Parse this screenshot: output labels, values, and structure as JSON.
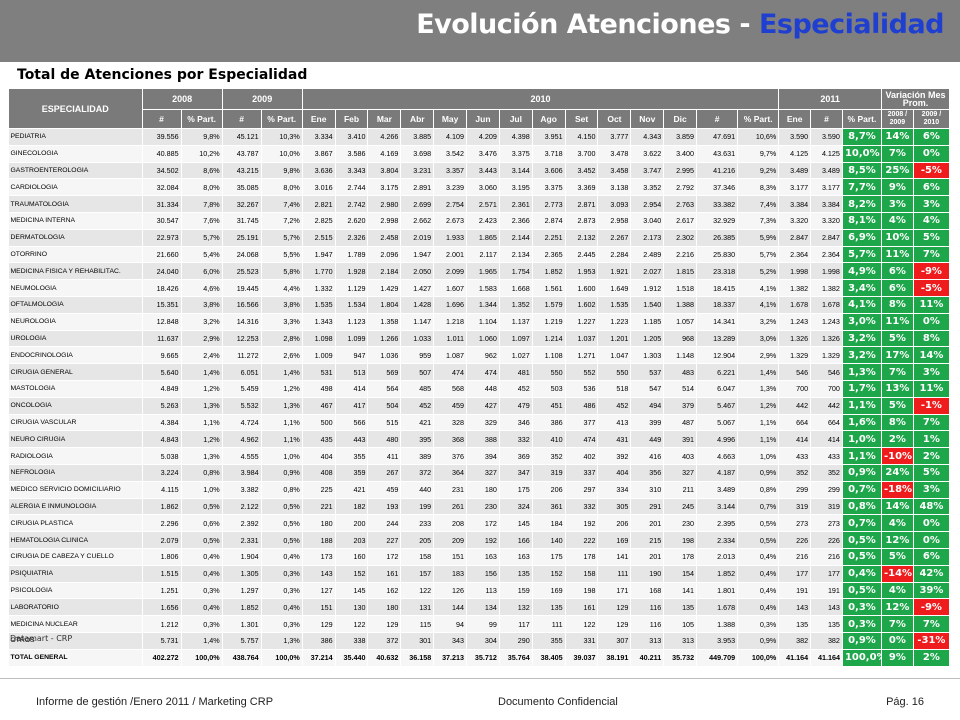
{
  "slide": {
    "title_main": "Evolución Atenciones - ",
    "title_highlight": "Especialidad",
    "subtitle": "Total de Atenciones por Especialidad",
    "source_note": "Datamart - CRP",
    "footer_left": "Informe de gestión /Enero 2011 / Marketing CRP",
    "footer_center": "Documento Confidencial",
    "footer_right": "Pág. 16",
    "colors": {
      "header_bg": "#7f7f7f",
      "highlight": "#1f3fd0",
      "table_header": "#7a7a7a",
      "positive": "#1ea64a",
      "negative": "#ee1c1c"
    }
  },
  "table": {
    "header_top": {
      "especialidad": "ESPECIALIDAD",
      "y2008": "2008",
      "y2009": "2009",
      "y2010": "2010",
      "y2011": "2011",
      "variacion": "Variación Mes Prom."
    },
    "sub_headers": [
      "#",
      "% Part.",
      "#",
      "% Part.",
      "Ene",
      "Feb",
      "Mar",
      "Abr",
      "May",
      "Jun",
      "Jul",
      "Ago",
      "Set",
      "Oct",
      "Nov",
      "Dic",
      "#",
      "% Part.",
      "Ene",
      "#",
      "% Part.",
      "2008 / 2009",
      "2009 / 2010"
    ],
    "rows": [
      [
        "PEDIATRIA",
        "39.556",
        "9,8%",
        "45.121",
        "10,3%",
        "3.334",
        "3.410",
        "4.266",
        "3.885",
        "4.109",
        "4.209",
        "4.398",
        "3.951",
        "4.150",
        "3.777",
        "4.343",
        "3.859",
        "47.691",
        "10,6%",
        "3.590",
        "3.590",
        "8,7%",
        "14%",
        "6%"
      ],
      [
        "GINECOLOGIA",
        "40.885",
        "10,2%",
        "43.787",
        "10,0%",
        "3.867",
        "3.586",
        "4.169",
        "3.698",
        "3.542",
        "3.476",
        "3.375",
        "3.718",
        "3.700",
        "3.478",
        "3.622",
        "3.400",
        "43.631",
        "9,7%",
        "4.125",
        "4.125",
        "10,0%",
        "7%",
        "0%"
      ],
      [
        "GASTROENTEROLOGIA",
        "34.502",
        "8,6%",
        "43.215",
        "9,8%",
        "3.636",
        "3.343",
        "3.804",
        "3.231",
        "3.357",
        "3.443",
        "3.144",
        "3.606",
        "3.452",
        "3.458",
        "3.747",
        "2.995",
        "41.216",
        "9,2%",
        "3.489",
        "3.489",
        "8,5%",
        "25%",
        "-5%"
      ],
      [
        "CARDIOLOGIA",
        "32.084",
        "8,0%",
        "35.085",
        "8,0%",
        "3.016",
        "2.744",
        "3.175",
        "2.891",
        "3.239",
        "3.060",
        "3.195",
        "3.375",
        "3.369",
        "3.138",
        "3.352",
        "2.792",
        "37.346",
        "8,3%",
        "3.177",
        "3.177",
        "7,7%",
        "9%",
        "6%"
      ],
      [
        "TRAUMATOLOGIA",
        "31.334",
        "7,8%",
        "32.267",
        "7,4%",
        "2.821",
        "2.742",
        "2.980",
        "2.699",
        "2.754",
        "2.571",
        "2.361",
        "2.773",
        "2.871",
        "3.093",
        "2.954",
        "2.763",
        "33.382",
        "7,4%",
        "3.384",
        "3.384",
        "8,2%",
        "3%",
        "3%"
      ],
      [
        "MEDICINA INTERNA",
        "30.547",
        "7,6%",
        "31.745",
        "7,2%",
        "2.825",
        "2.620",
        "2.998",
        "2.662",
        "2.673",
        "2.423",
        "2.366",
        "2.874",
        "2.873",
        "2.958",
        "3.040",
        "2.617",
        "32.929",
        "7,3%",
        "3.320",
        "3.320",
        "8,1%",
        "4%",
        "4%"
      ],
      [
        "DERMATOLOGIA",
        "22.973",
        "5,7%",
        "25.191",
        "5,7%",
        "2.515",
        "2.326",
        "2.458",
        "2.019",
        "1.933",
        "1.865",
        "2.144",
        "2.251",
        "2.132",
        "2.267",
        "2.173",
        "2.302",
        "26.385",
        "5,9%",
        "2.847",
        "2.847",
        "6,9%",
        "10%",
        "5%"
      ],
      [
        "OTORRINO",
        "21.660",
        "5,4%",
        "24.068",
        "5,5%",
        "1.947",
        "1.789",
        "2.096",
        "1.947",
        "2.001",
        "2.117",
        "2.134",
        "2.365",
        "2.445",
        "2.284",
        "2.489",
        "2.216",
        "25.830",
        "5,7%",
        "2.364",
        "2.364",
        "5,7%",
        "11%",
        "7%"
      ],
      [
        "MEDICINA FISICA Y REHABILITAC.",
        "24.040",
        "6,0%",
        "25.523",
        "5,8%",
        "1.770",
        "1.928",
        "2.184",
        "2.050",
        "2.099",
        "1.965",
        "1.754",
        "1.852",
        "1.953",
        "1.921",
        "2.027",
        "1.815",
        "23.318",
        "5,2%",
        "1.998",
        "1.998",
        "4,9%",
        "6%",
        "-9%"
      ],
      [
        "NEUMOLOGIA",
        "18.426",
        "4,6%",
        "19.445",
        "4,4%",
        "1.332",
        "1.129",
        "1.429",
        "1.427",
        "1.607",
        "1.583",
        "1.668",
        "1.561",
        "1.600",
        "1.649",
        "1.912",
        "1.518",
        "18.415",
        "4,1%",
        "1.382",
        "1.382",
        "3,4%",
        "6%",
        "-5%"
      ],
      [
        "OFTALMOLOGIA",
        "15.351",
        "3,8%",
        "16.566",
        "3,8%",
        "1.535",
        "1.534",
        "1.804",
        "1.428",
        "1.696",
        "1.344",
        "1.352",
        "1.579",
        "1.602",
        "1.535",
        "1.540",
        "1.388",
        "18.337",
        "4,1%",
        "1.678",
        "1.678",
        "4,1%",
        "8%",
        "11%"
      ],
      [
        "NEUROLOGIA",
        "12.848",
        "3,2%",
        "14.316",
        "3,3%",
        "1.343",
        "1.123",
        "1.358",
        "1.147",
        "1.218",
        "1.104",
        "1.137",
        "1.219",
        "1.227",
        "1.223",
        "1.185",
        "1.057",
        "14.341",
        "3,2%",
        "1.243",
        "1.243",
        "3,0%",
        "11%",
        "0%"
      ],
      [
        "UROLOGIA",
        "11.637",
        "2,9%",
        "12.253",
        "2,8%",
        "1.098",
        "1.099",
        "1.266",
        "1.033",
        "1.011",
        "1.060",
        "1.097",
        "1.214",
        "1.037",
        "1.201",
        "1.205",
        "968",
        "13.289",
        "3,0%",
        "1.326",
        "1.326",
        "3,2%",
        "5%",
        "8%"
      ],
      [
        "ENDOCRINOLOGIA",
        "9.665",
        "2,4%",
        "11.272",
        "2,6%",
        "1.009",
        "947",
        "1.036",
        "959",
        "1.087",
        "962",
        "1.027",
        "1.108",
        "1.271",
        "1.047",
        "1.303",
        "1.148",
        "12.904",
        "2,9%",
        "1.329",
        "1.329",
        "3,2%",
        "17%",
        "14%"
      ],
      [
        "CIRUGIA GENERAL",
        "5.640",
        "1,4%",
        "6.051",
        "1,4%",
        "531",
        "513",
        "569",
        "507",
        "474",
        "474",
        "481",
        "550",
        "552",
        "550",
        "537",
        "483",
        "6.221",
        "1,4%",
        "546",
        "546",
        "1,3%",
        "7%",
        "3%"
      ],
      [
        "MASTOLOGIA",
        "4.849",
        "1,2%",
        "5.459",
        "1,2%",
        "498",
        "414",
        "564",
        "485",
        "568",
        "448",
        "452",
        "503",
        "536",
        "518",
        "547",
        "514",
        "6.047",
        "1,3%",
        "700",
        "700",
        "1,7%",
        "13%",
        "11%"
      ],
      [
        "ONCOLOGIA",
        "5.263",
        "1,3%",
        "5.532",
        "1,3%",
        "467",
        "417",
        "504",
        "452",
        "459",
        "427",
        "479",
        "451",
        "486",
        "452",
        "494",
        "379",
        "5.467",
        "1,2%",
        "442",
        "442",
        "1,1%",
        "5%",
        "-1%"
      ],
      [
        "CIRUGIA VASCULAR",
        "4.384",
        "1,1%",
        "4.724",
        "1,1%",
        "500",
        "566",
        "515",
        "421",
        "328",
        "329",
        "346",
        "386",
        "377",
        "413",
        "399",
        "487",
        "5.067",
        "1,1%",
        "664",
        "664",
        "1,6%",
        "8%",
        "7%"
      ],
      [
        "NEURO CIRUGIA",
        "4.843",
        "1,2%",
        "4.962",
        "1,1%",
        "435",
        "443",
        "480",
        "395",
        "368",
        "388",
        "332",
        "410",
        "474",
        "431",
        "449",
        "391",
        "4.996",
        "1,1%",
        "414",
        "414",
        "1,0%",
        "2%",
        "1%"
      ],
      [
        "RADIOLOGIA",
        "5.038",
        "1,3%",
        "4.555",
        "1,0%",
        "404",
        "355",
        "411",
        "389",
        "376",
        "394",
        "369",
        "352",
        "402",
        "392",
        "416",
        "403",
        "4.663",
        "1,0%",
        "433",
        "433",
        "1,1%",
        "-10%",
        "2%"
      ],
      [
        "NEFROLOGIA",
        "3.224",
        "0,8%",
        "3.984",
        "0,9%",
        "408",
        "359",
        "267",
        "372",
        "364",
        "327",
        "347",
        "319",
        "337",
        "404",
        "356",
        "327",
        "4.187",
        "0,9%",
        "352",
        "352",
        "0,9%",
        "24%",
        "5%"
      ],
      [
        "MEDICO SERVICIO DOMICILIARIO",
        "4.115",
        "1,0%",
        "3.382",
        "0,8%",
        "225",
        "421",
        "459",
        "440",
        "231",
        "180",
        "175",
        "206",
        "297",
        "334",
        "310",
        "211",
        "3.489",
        "0,8%",
        "299",
        "299",
        "0,7%",
        "-18%",
        "3%"
      ],
      [
        "ALERGIA E INMUNOLOGIA",
        "1.862",
        "0,5%",
        "2.122",
        "0,5%",
        "221",
        "182",
        "193",
        "199",
        "261",
        "230",
        "324",
        "361",
        "332",
        "305",
        "291",
        "245",
        "3.144",
        "0,7%",
        "319",
        "319",
        "0,8%",
        "14%",
        "48%"
      ],
      [
        "CIRUGIA PLASTICA",
        "2.296",
        "0,6%",
        "2.392",
        "0,5%",
        "180",
        "200",
        "244",
        "233",
        "208",
        "172",
        "145",
        "184",
        "192",
        "206",
        "201",
        "230",
        "2.395",
        "0,5%",
        "273",
        "273",
        "0,7%",
        "4%",
        "0%"
      ],
      [
        "HEMATOLOGIA CLINICA",
        "2.079",
        "0,5%",
        "2.331",
        "0,5%",
        "188",
        "203",
        "227",
        "205",
        "209",
        "192",
        "166",
        "140",
        "222",
        "169",
        "215",
        "198",
        "2.334",
        "0,5%",
        "226",
        "226",
        "0,5%",
        "12%",
        "0%"
      ],
      [
        "CIRUGIA DE CABEZA Y CUELLO",
        "1.806",
        "0,4%",
        "1.904",
        "0,4%",
        "173",
        "160",
        "172",
        "158",
        "151",
        "163",
        "163",
        "175",
        "178",
        "141",
        "201",
        "178",
        "2.013",
        "0,4%",
        "216",
        "216",
        "0,5%",
        "5%",
        "6%"
      ],
      [
        "PSIQUIATRIA",
        "1.515",
        "0,4%",
        "1.305",
        "0,3%",
        "143",
        "152",
        "161",
        "157",
        "183",
        "156",
        "135",
        "152",
        "158",
        "111",
        "190",
        "154",
        "1.852",
        "0,4%",
        "177",
        "177",
        "0,4%",
        "-14%",
        "42%"
      ],
      [
        "PSICOLOGIA",
        "1.251",
        "0,3%",
        "1.297",
        "0,3%",
        "127",
        "145",
        "162",
        "122",
        "126",
        "113",
        "159",
        "169",
        "198",
        "171",
        "168",
        "141",
        "1.801",
        "0,4%",
        "191",
        "191",
        "0,5%",
        "4%",
        "39%"
      ],
      [
        "LABORATORIO",
        "1.656",
        "0,4%",
        "1.852",
        "0,4%",
        "151",
        "130",
        "180",
        "131",
        "144",
        "134",
        "132",
        "135",
        "161",
        "129",
        "116",
        "135",
        "1.678",
        "0,4%",
        "143",
        "143",
        "0,3%",
        "12%",
        "-9%"
      ],
      [
        "MEDICINA NUCLEAR",
        "1.212",
        "0,3%",
        "1.301",
        "0,3%",
        "129",
        "122",
        "129",
        "115",
        "94",
        "99",
        "117",
        "111",
        "122",
        "129",
        "116",
        "105",
        "1.388",
        "0,3%",
        "135",
        "135",
        "0,3%",
        "7%",
        "7%"
      ],
      [
        "OTROS",
        "5.731",
        "1,4%",
        "5.757",
        "1,3%",
        "386",
        "338",
        "372",
        "301",
        "343",
        "304",
        "290",
        "355",
        "331",
        "307",
        "313",
        "313",
        "3.953",
        "0,9%",
        "382",
        "382",
        "0,9%",
        "0%",
        "-31%"
      ],
      [
        "TOTAL GENERAL",
        "402.272",
        "100,0%",
        "438.764",
        "100,0%",
        "37.214",
        "35.440",
        "40.632",
        "36.158",
        "37.213",
        "35.712",
        "35.764",
        "38.405",
        "39.037",
        "38.191",
        "40.211",
        "35.732",
        "449.709",
        "100,0%",
        "41.164",
        "41.164",
        "100,0%",
        "9%",
        "2%"
      ]
    ]
  }
}
